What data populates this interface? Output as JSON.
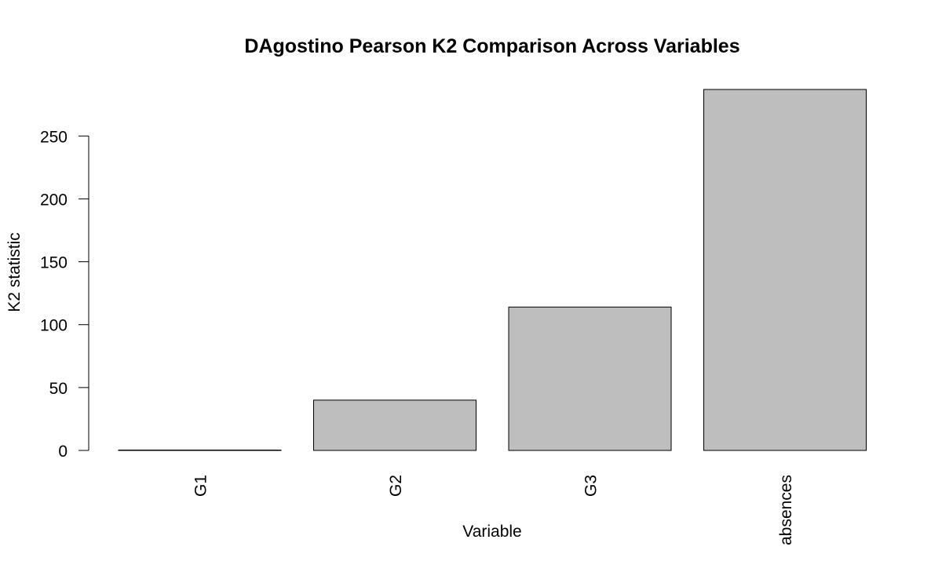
{
  "chart_data": {
    "type": "bar",
    "title": "DAgostino Pearson K2 Comparison Across Variables",
    "xlabel": "Variable",
    "ylabel": "K2 statistic",
    "categories": [
      "G1",
      "G2",
      "G3",
      "absences"
    ],
    "values": [
      0.3,
      40,
      114,
      287
    ],
    "yticks": [
      0,
      50,
      100,
      150,
      200,
      250
    ],
    "ylim": [
      0,
      287
    ],
    "grid": false,
    "legend": "none",
    "bar_color": "#bebebe",
    "edge_color": "#000000"
  }
}
